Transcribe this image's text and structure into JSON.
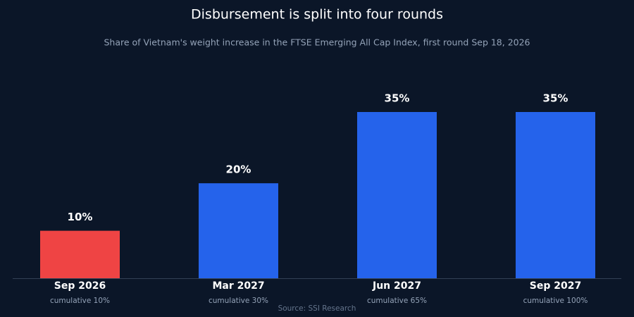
{
  "chart_data": {
    "type": "bar",
    "title": "Disbursement is split into four rounds",
    "subtitle": "Share of Vietnam's weight increase in the FTSE Emerging All Cap Index, first round Sep 18, 2026",
    "categories": [
      "Sep 2026",
      "Mar 2027",
      "Jun 2027",
      "Sep 2027"
    ],
    "values": [
      10,
      20,
      35,
      35
    ],
    "value_labels": [
      "10%",
      "20%",
      "35%",
      "35%"
    ],
    "category_notes": [
      "cumulative 10%",
      "cumulative 30%",
      "cumulative 65%",
      "cumulative 100%"
    ],
    "colors": [
      "#ef4444",
      "#2563eb",
      "#2563eb",
      "#2563eb"
    ],
    "source": "Source: SSI Research"
  }
}
